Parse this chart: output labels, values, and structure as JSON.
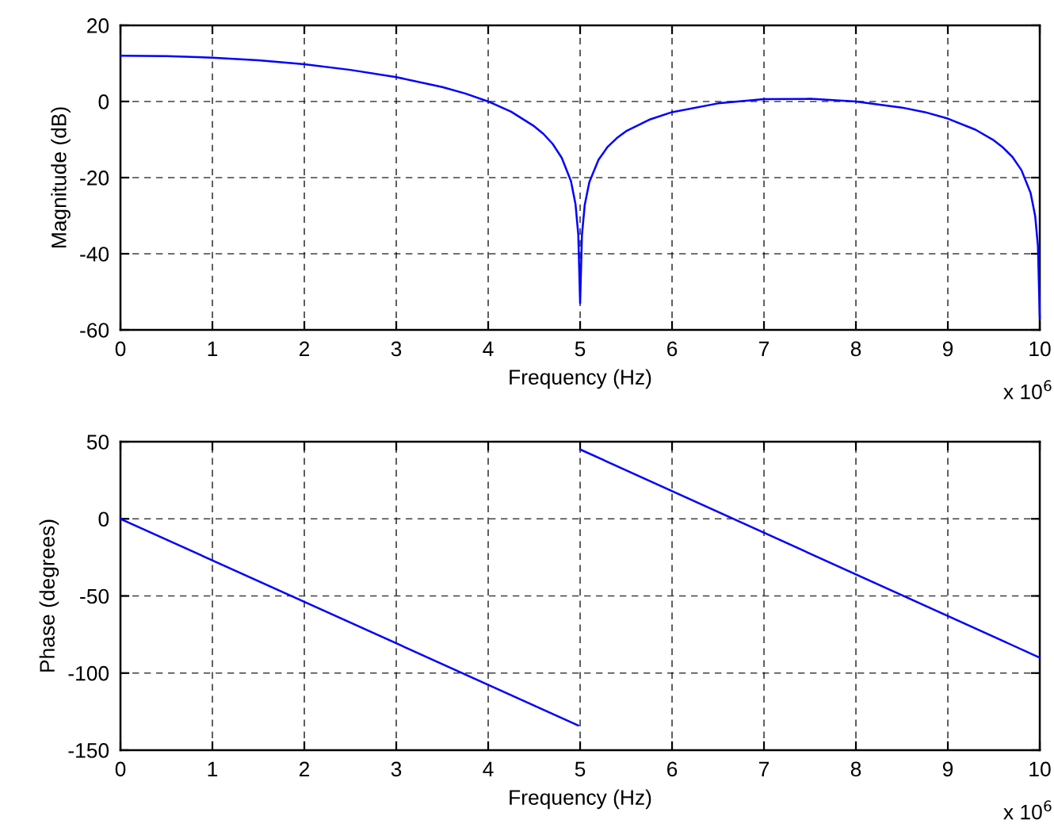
{
  "chart_data": [
    {
      "type": "line",
      "xlabel": "Frequency (Hz)",
      "ylabel": "Magnitude (dB)",
      "x": [
        0,
        0.5,
        1,
        1.5,
        2,
        2.5,
        3,
        3.5,
        3.75,
        4,
        4.25,
        4.5,
        4.6,
        4.7,
        4.8,
        4.9,
        4.95,
        4.98,
        5,
        5.02,
        5.05,
        5.1,
        5.2,
        5.3,
        5.4,
        5.5,
        5.75,
        6,
        6.5,
        7,
        7.5,
        8,
        8.5,
        8.75,
        9,
        9.3,
        9.5,
        9.6,
        9.7,
        9.8,
        9.9,
        9.95,
        9.98,
        10
      ],
      "series": [
        {
          "color": "#0000ff",
          "values": [
            12.0,
            11.9,
            11.5,
            10.8,
            9.8,
            8.3,
            6.4,
            3.8,
            2.1,
            0.0,
            -2.7,
            -6.5,
            -8.5,
            -11.1,
            -14.8,
            -20.9,
            -27.0,
            -35.0,
            -53.0,
            -35.1,
            -27.2,
            -21.2,
            -15.3,
            -11.9,
            -9.6,
            -7.8,
            -4.8,
            -2.8,
            -0.5,
            0.6,
            0.7,
            0.0,
            -1.6,
            -2.8,
            -4.5,
            -7.4,
            -10.2,
            -12.1,
            -14.5,
            -18.0,
            -24.0,
            -30.1,
            -38.0,
            -57.0
          ]
        }
      ],
      "xlim": [
        0,
        10
      ],
      "xticks": [
        0,
        1,
        2,
        3,
        4,
        5,
        6,
        7,
        8,
        9,
        10
      ],
      "ylim": [
        -60,
        20
      ],
      "yticks": [
        -60,
        -40,
        -20,
        0,
        20
      ],
      "grid": true,
      "annotations": [
        "x 10$^{6}$"
      ]
    },
    {
      "type": "line",
      "xlabel": "Frequency (Hz)",
      "ylabel": "Phase (degrees)",
      "x": [
        0,
        4.98,
        4.99,
        5,
        10
      ],
      "series": [
        {
          "color": "#0000ff",
          "values": [
            0,
            -134,
            null,
            45,
            -90
          ]
        }
      ],
      "xlim": [
        0,
        10
      ],
      "xticks": [
        0,
        1,
        2,
        3,
        4,
        5,
        6,
        7,
        8,
        9,
        10
      ],
      "ylim": [
        -150,
        50
      ],
      "yticks": [
        -150,
        -100,
        -50,
        0,
        50
      ],
      "grid": true,
      "annotations": [
        "x 10$^{6}$"
      ]
    }
  ]
}
